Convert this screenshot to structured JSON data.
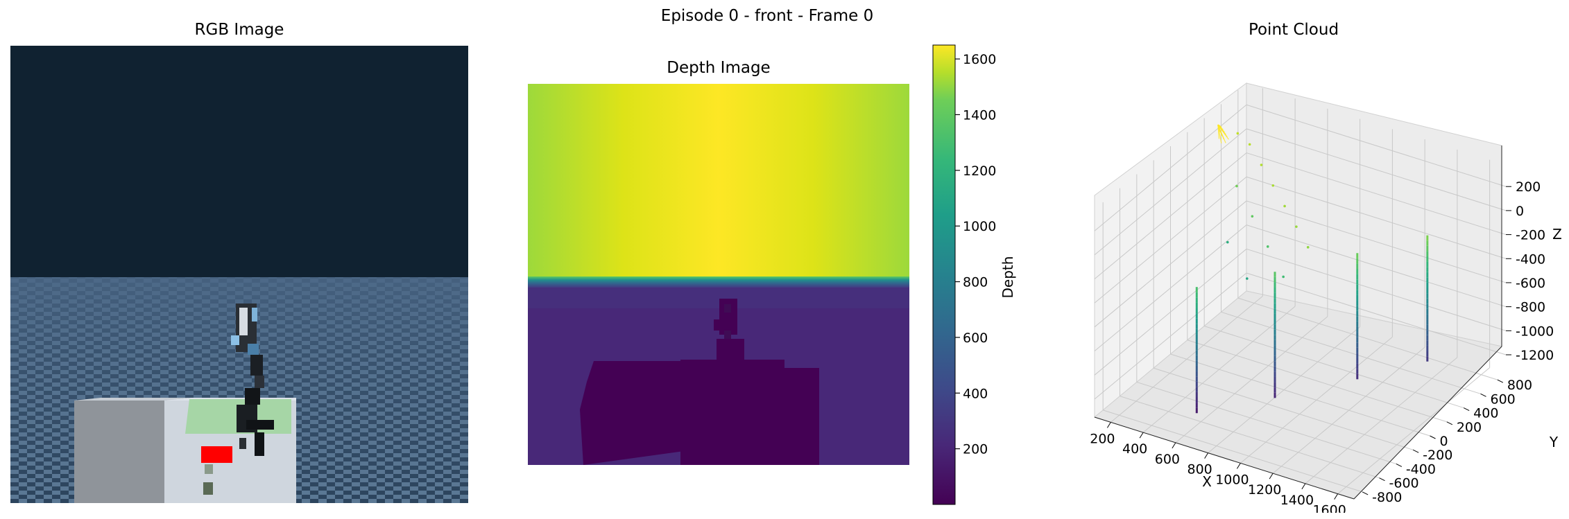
{
  "figure": {
    "suptitle": "Episode 0 - front - Frame 0",
    "colors": {
      "sky": "#102231",
      "floor_light": "#5b7894",
      "floor_dark": "#2c445d",
      "table": "#cfd6de",
      "box": "#a9aeb4",
      "red_block": "#ff0000",
      "green_patch": "#a6d6a6",
      "viridis_high": "#fde725",
      "viridis_low": "#440154"
    }
  },
  "panels": {
    "rgb": {
      "title": "RGB Image"
    },
    "depth": {
      "title": "Depth Image",
      "colorbar_label": "Depth"
    },
    "cloud": {
      "title": "Point Cloud",
      "xlabel": "X",
      "ylabel": "Y",
      "zlabel": "Z"
    }
  },
  "chart_data": [
    {
      "type": "heatmap",
      "title": "Depth Image",
      "colormap": "viridis",
      "colorbar": {
        "label": "Depth",
        "range": [
          0,
          1650
        ],
        "ticks": [
          200,
          400,
          600,
          800,
          1000,
          1200,
          1400,
          1600
        ]
      },
      "regions": [
        {
          "region": "upper (sky)",
          "depth_center": 1650,
          "depth_edges": 1350
        },
        {
          "region": "horizon band",
          "depth": 650
        },
        {
          "region": "lower (floor)",
          "depth": 160
        },
        {
          "region": "table and robot",
          "depth": 60
        }
      ]
    },
    {
      "type": "scatter",
      "title": "Point Cloud",
      "xlabel": "X",
      "ylabel": "Y",
      "zlabel": "Z",
      "x_ticks": [
        200,
        400,
        600,
        800,
        1000,
        1200,
        1400,
        1600
      ],
      "y_ticks": [
        -800,
        -600,
        -400,
        -200,
        0,
        200,
        400,
        600,
        800
      ],
      "z_ticks": [
        -1200,
        -1000,
        -800,
        -600,
        -400,
        -200,
        0,
        200
      ],
      "grid": true,
      "vertical_strokes": [
        {
          "x": 600,
          "y": -650,
          "z_range": [
            -1250,
            -200
          ]
        },
        {
          "x": 900,
          "y": -300,
          "z_range": [
            -1200,
            -150
          ]
        },
        {
          "x": 1200,
          "y": 100,
          "z_range": [
            -1150,
            -100
          ]
        },
        {
          "x": 1450,
          "y": 450,
          "z_range": [
            -1100,
            -50
          ]
        }
      ],
      "scattered_points": [
        {
          "x": 150,
          "y": 700,
          "z": 100
        },
        {
          "x": 250,
          "y": 650,
          "z": 80
        },
        {
          "x": 400,
          "y": 500,
          "z": 60
        },
        {
          "x": 550,
          "y": 350,
          "z": 40
        },
        {
          "x": 700,
          "y": 200,
          "z": 20
        },
        {
          "x": 850,
          "y": 50,
          "z": 0
        },
        {
          "x": 1000,
          "y": -100,
          "z": -20
        },
        {
          "x": 300,
          "y": 400,
          "z": -100
        },
        {
          "x": 500,
          "y": 200,
          "z": -150
        },
        {
          "x": 700,
          "y": 0,
          "z": -200
        },
        {
          "x": 900,
          "y": -200,
          "z": -250
        },
        {
          "x": 400,
          "y": 100,
          "z": -350
        },
        {
          "x": 650,
          "y": -150,
          "z": -400
        }
      ]
    }
  ]
}
